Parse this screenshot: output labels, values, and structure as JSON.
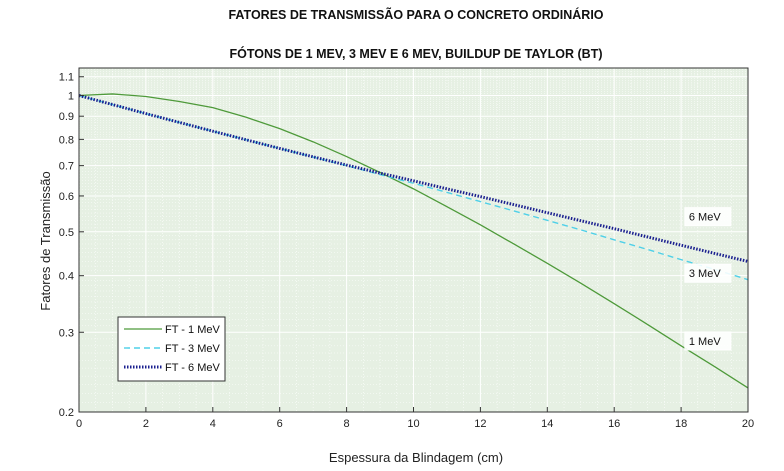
{
  "chart_data": {
    "type": "line",
    "suptitle": "FATORES DE TRANSMISSÃO PARA O CONCRETO ORDINÁRIO",
    "title": "FÓTONS DE 1 MEV, 3 MEV E 6 MEV, BUILDUP DE TAYLOR (BT)",
    "xlabel": "Espessura da Blindagem (cm)",
    "ylabel": "Fatores de Transmissão",
    "xlim": [
      0,
      20
    ],
    "ylim": [
      0.2,
      1.15
    ],
    "yscale": "log",
    "grid": true,
    "minor_grid": true,
    "legend_position": "lower-left",
    "background_color": "#e6f0e3",
    "x_ticks": [
      0,
      2,
      4,
      6,
      8,
      10,
      12,
      14,
      16,
      18,
      20
    ],
    "x_tick_labels": [
      "0",
      "2",
      "4",
      "6",
      "8",
      "10",
      "12",
      "14",
      "16",
      "18",
      "20"
    ],
    "y_ticks": [
      0.2,
      0.3,
      0.4,
      0.5,
      0.6,
      0.7,
      0.8,
      0.9,
      1,
      1.1
    ],
    "y_tick_labels": [
      "0.2",
      "0.3",
      "0.4",
      "0.5",
      "0.6",
      "0.7",
      "0.8",
      "0.9",
      "1",
      "1.1"
    ],
    "x": [
      0,
      1,
      2,
      3,
      4,
      5,
      6,
      7,
      8,
      9,
      10,
      11,
      12,
      13,
      14,
      15,
      16,
      17,
      18,
      19,
      20
    ],
    "series": [
      {
        "name": "FT - 1 MeV",
        "color": "#4e9a3a",
        "style": "solid",
        "values": [
          1.0,
          1.008,
          0.995,
          0.97,
          0.94,
          0.895,
          0.845,
          0.79,
          0.733,
          0.676,
          0.622,
          0.568,
          0.518,
          0.47,
          0.426,
          0.385,
          0.347,
          0.312,
          0.28,
          0.252,
          0.226
        ]
      },
      {
        "name": "FT - 3 MeV",
        "color": "#4fd0e8",
        "style": "dashed",
        "values": [
          1.0,
          0.955,
          0.912,
          0.872,
          0.834,
          0.798,
          0.764,
          0.731,
          0.7,
          0.669,
          0.64,
          0.611,
          0.583,
          0.556,
          0.53,
          0.505,
          0.48,
          0.457,
          0.434,
          0.413,
          0.392
        ]
      },
      {
        "name": "FT - 6 MeV",
        "color": "#1a1f8f",
        "style": "dotted",
        "values": [
          1.0,
          0.955,
          0.912,
          0.872,
          0.834,
          0.798,
          0.764,
          0.732,
          0.702,
          0.674,
          0.648,
          0.622,
          0.598,
          0.574,
          0.551,
          0.529,
          0.508,
          0.487,
          0.467,
          0.448,
          0.43
        ]
      }
    ],
    "annotations": [
      {
        "text": "6 MeV",
        "x": 18.8,
        "y": 0.54
      },
      {
        "text": "3 MeV",
        "x": 18.8,
        "y": 0.405
      },
      {
        "text": "1 MeV",
        "x": 18.8,
        "y": 0.287
      }
    ]
  }
}
